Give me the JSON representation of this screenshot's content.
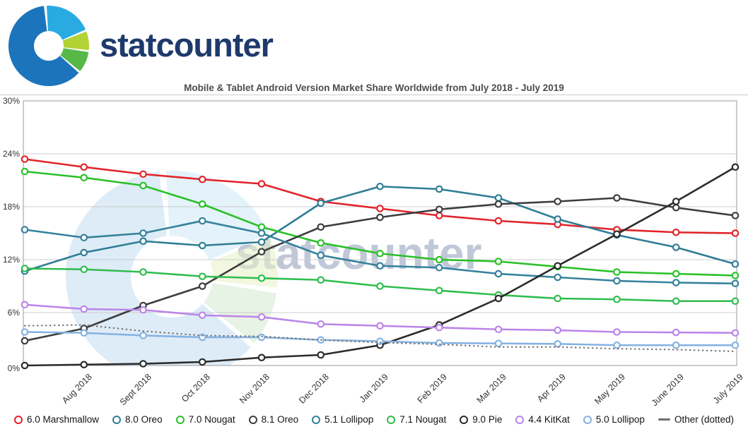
{
  "header": {
    "brand": "statcounter",
    "logo_colors": {
      "dark_blue": "#1c75bc",
      "light_blue": "#29abe2",
      "yellow_green": "#b2d235",
      "green": "#57b847"
    }
  },
  "chart_data": {
    "type": "line",
    "title": "Mobile & Tablet Android Version Market Share Worldwide from July 2018 - July 2019",
    "x_labels": [
      "Aug 2018",
      "Sept 2018",
      "Oct 2018",
      "Nov 2018",
      "Dec 2018",
      "Jan 2019",
      "Feb 2019",
      "Mar 2019",
      "Apr 2019",
      "May 2019",
      "June 2019",
      "July 2019"
    ],
    "first_point_unlabeled": true,
    "points_per_series": 13,
    "ylim": [
      0,
      30
    ],
    "y_ticks": [
      {
        "label": "0%",
        "value": 0
      },
      {
        "label": "6%",
        "value": 6
      },
      {
        "label": "12%",
        "value": 12
      },
      {
        "label": "18%",
        "value": 18
      },
      {
        "label": "24%",
        "value": 24
      },
      {
        "label": "30%",
        "value": 30
      }
    ],
    "grid": "horizontal",
    "legend_position": "bottom",
    "watermark_text": "statcounter",
    "watermark_colors": [
      "#c3ddf1",
      "#d4ead0",
      "#e9f1c8",
      "#cfe9f7"
    ],
    "series": [
      {
        "name": "6.0 Marshmallow",
        "color": "#e1242a",
        "style": "solid",
        "values": [
          23.4,
          22.5,
          21.7,
          21.1,
          20.6,
          18.6,
          17.8,
          17.0,
          16.4,
          16.0,
          15.4,
          15.1,
          15.0
        ]
      },
      {
        "name": "8.0 Oreo",
        "color": "#2f7d95",
        "style": "solid",
        "values": [
          10.7,
          12.8,
          14.1,
          13.6,
          14.0,
          18.4,
          20.3,
          20.0,
          19.0,
          16.6,
          14.8,
          13.4,
          11.5
        ]
      },
      {
        "name": "7.0 Nougat",
        "color": "#29c127",
        "style": "solid",
        "values": [
          22.0,
          21.3,
          20.4,
          18.3,
          15.7,
          13.9,
          12.7,
          12.0,
          11.8,
          11.2,
          10.6,
          10.4,
          10.2
        ]
      },
      {
        "name": "8.1 Oreo",
        "color": "#3d3d3d",
        "style": "solid",
        "values": [
          2.8,
          4.2,
          6.8,
          9.0,
          12.9,
          15.7,
          16.8,
          17.7,
          18.3,
          18.6,
          19.0,
          17.9,
          17.0
        ]
      },
      {
        "name": "5.1 Lollipop",
        "color": "#35819b",
        "style": "solid",
        "values": [
          15.4,
          14.5,
          15.0,
          16.4,
          15.0,
          12.5,
          11.3,
          11.1,
          10.4,
          10.0,
          9.6,
          9.4,
          9.3
        ]
      },
      {
        "name": "7.1 Nougat",
        "color": "#2fbd4d",
        "style": "solid",
        "values": [
          11.0,
          10.9,
          10.6,
          10.1,
          9.9,
          9.7,
          9.0,
          8.5,
          8.0,
          7.6,
          7.5,
          7.3,
          7.3
        ]
      },
      {
        "name": "9.0 Pie",
        "color": "#2b2b2b",
        "style": "solid",
        "values": [
          0.0,
          0.1,
          0.2,
          0.4,
          0.9,
          1.2,
          2.3,
          4.6,
          7.6,
          11.3,
          14.9,
          18.6,
          22.5
        ]
      },
      {
        "name": "4.4 KitKat",
        "color": "#bb85e8",
        "style": "solid",
        "values": [
          6.9,
          6.4,
          6.3,
          5.7,
          5.5,
          4.7,
          4.5,
          4.3,
          4.1,
          4.0,
          3.8,
          3.75,
          3.7
        ]
      },
      {
        "name": "5.0 Lollipop",
        "color": "#84b2e2",
        "style": "solid",
        "values": [
          3.8,
          3.7,
          3.4,
          3.2,
          3.2,
          2.9,
          2.75,
          2.55,
          2.5,
          2.45,
          2.3,
          2.3,
          2.3
        ]
      },
      {
        "name": "Other (dotted)",
        "color": "#757575",
        "style": "dotted",
        "values": [
          4.5,
          4.6,
          3.9,
          3.4,
          3.3,
          2.9,
          2.6,
          2.4,
          2.1,
          2.1,
          1.9,
          1.8,
          1.6
        ]
      }
    ]
  }
}
